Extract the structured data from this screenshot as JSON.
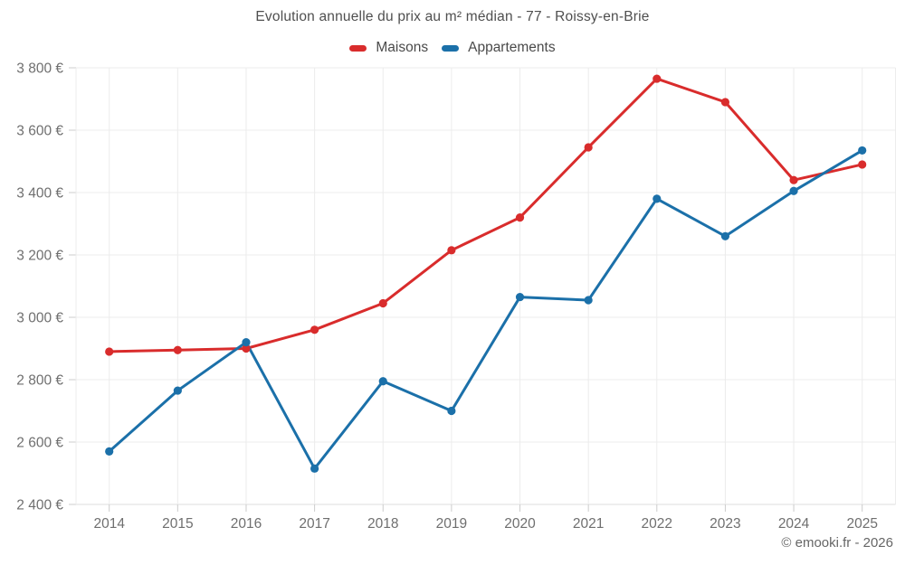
{
  "page": {
    "title": "Evolution annuelle du prix au m² médian - 77 - Roissy-en-Brie",
    "attribution": "© emooki.fr - 2026"
  },
  "colors": {
    "maisons": "#d92c2c",
    "appartements": "#1b70a9",
    "gridline": "#ececec",
    "axis_line": "#dcdcdc",
    "tick": "#cccccc",
    "tick_label": "#6f6f6f",
    "title_text": "#4f4f4f"
  },
  "chart_data": {
    "type": "line",
    "title": "Evolution annuelle du prix au m² médian - 77 - Roissy-en-Brie",
    "categories": [
      "2014",
      "2015",
      "2016",
      "2017",
      "2018",
      "2019",
      "2020",
      "2021",
      "2022",
      "2023",
      "2024",
      "2025"
    ],
    "series": [
      {
        "name": "Maisons",
        "color": "#d92c2c",
        "values": [
          2890,
          2895,
          2900,
          2960,
          3045,
          3215,
          3320,
          3545,
          3765,
          3690,
          3440,
          3490
        ]
      },
      {
        "name": "Appartements",
        "color": "#1b70a9",
        "values": [
          2570,
          2765,
          2920,
          2515,
          2795,
          2700,
          3065,
          3055,
          3380,
          3260,
          3405,
          3535
        ]
      }
    ],
    "xlabel": "",
    "ylabel": "",
    "ylim": [
      2400,
      3800
    ],
    "yticks": [
      2400,
      2600,
      2800,
      3000,
      3200,
      3400,
      3600,
      3800
    ],
    "ytick_labels": [
      "2 400 €",
      "2 600 €",
      "2 800 €",
      "3 000 €",
      "3 200 €",
      "3 400 €",
      "3 600 €",
      "3 800 €"
    ],
    "grid": true,
    "legend_position": "top",
    "marker": "circle"
  }
}
